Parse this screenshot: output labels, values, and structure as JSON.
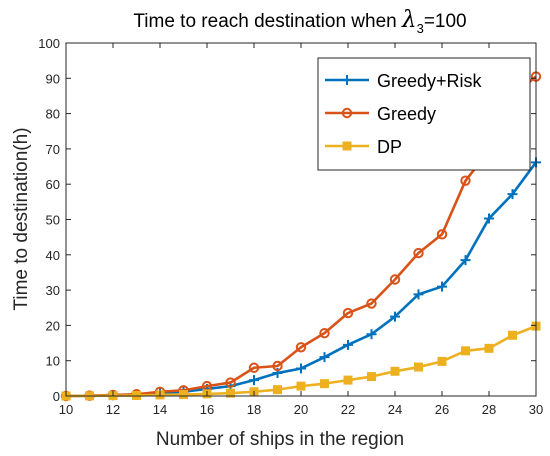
{
  "chart_data": {
    "type": "line",
    "title_prefix": "Time to reach destination when ",
    "title_symbol": "λ",
    "title_subscript": "3",
    "title_suffix": "=100",
    "xlabel": "Number of ships in the region",
    "ylabel": "Time to destination(h)",
    "xlim": [
      10,
      30
    ],
    "ylim": [
      0,
      100
    ],
    "xticks": [
      10,
      12,
      14,
      16,
      18,
      20,
      22,
      24,
      26,
      28,
      30
    ],
    "yticks": [
      0,
      10,
      20,
      30,
      40,
      50,
      60,
      70,
      80,
      90,
      100
    ],
    "grid": false,
    "legend_position": "top-right",
    "x": [
      10,
      11,
      12,
      13,
      14,
      15,
      16,
      17,
      18,
      19,
      20,
      21,
      22,
      23,
      24,
      25,
      26,
      27,
      28,
      29,
      30
    ],
    "series": [
      {
        "name": "Greedy+Risk",
        "color": "#0072BD",
        "marker": "plus",
        "values": [
          0,
          0.1,
          0.2,
          0.3,
          0.8,
          1.2,
          2.0,
          2.8,
          4.5,
          6.5,
          7.8,
          11.0,
          14.5,
          17.5,
          22.5,
          28.8,
          31.0,
          38.5,
          50.3,
          57.2,
          66.2
        ]
      },
      {
        "name": "Greedy",
        "color": "#D95319",
        "marker": "circle",
        "values": [
          0,
          0.1,
          0.3,
          0.5,
          1.2,
          1.6,
          2.8,
          3.8,
          8.0,
          8.5,
          13.8,
          17.8,
          23.5,
          26.2,
          33.0,
          40.5,
          45.8,
          61.0,
          69.5,
          85.0,
          90.5
        ]
      },
      {
        "name": "DP",
        "color": "#EDB120",
        "marker": "square",
        "values": [
          0,
          0.05,
          0.1,
          0.15,
          0.3,
          0.4,
          0.6,
          0.8,
          1.2,
          1.8,
          2.8,
          3.5,
          4.5,
          5.5,
          7.0,
          8.2,
          9.8,
          12.8,
          13.5,
          17.2,
          19.8
        ]
      }
    ]
  }
}
